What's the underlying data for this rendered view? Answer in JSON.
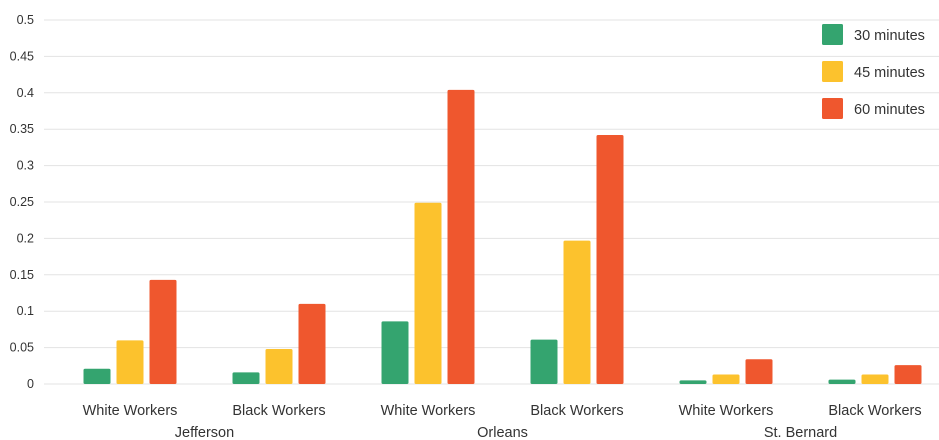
{
  "chart_data": {
    "type": "bar",
    "groups": [
      {
        "label": "Jefferson",
        "categories": [
          "White Workers",
          "Black Workers"
        ]
      },
      {
        "label": "Orleans",
        "categories": [
          "White Workers",
          "Black Workers"
        ]
      },
      {
        "label": "St. Bernard",
        "categories": [
          "White Workers",
          "Black Workers"
        ]
      }
    ],
    "series": [
      {
        "name": "30 minutes",
        "color": "#34a46f",
        "values": [
          0.021,
          0.016,
          0.086,
          0.061,
          0.005,
          0.006
        ]
      },
      {
        "name": "45 minutes",
        "color": "#fcc22d",
        "values": [
          0.06,
          0.048,
          0.249,
          0.197,
          0.013,
          0.013
        ]
      },
      {
        "name": "60 minutes",
        "color": "#ef572e",
        "values": [
          0.143,
          0.11,
          0.404,
          0.342,
          0.034,
          0.026
        ]
      }
    ],
    "y_ticks": [
      "0",
      "0.05",
      "0.1",
      "0.15",
      "0.2",
      "0.25",
      "0.3",
      "0.35",
      "0.4",
      "0.45",
      "0.5"
    ],
    "ylim": [
      0,
      0.5
    ],
    "grid": true,
    "legend_position": "top-right"
  }
}
